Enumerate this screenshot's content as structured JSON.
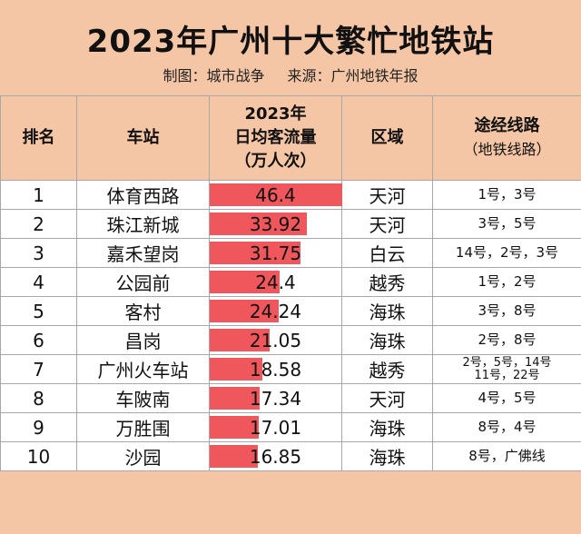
{
  "title": "2023年广州十大繁忙地铁站",
  "credits": {
    "maker": "制图：城市战争",
    "source": "来源：广州地铁年报"
  },
  "headers": {
    "rank": "排名",
    "station": "车站",
    "flow_year": "2023年",
    "flow_name": "日均客流量",
    "flow_unit": "（万人次）",
    "district": "区域",
    "lines": "途经线路",
    "lines_sub": "（地铁线路）"
  },
  "chart_data": {
    "type": "table",
    "title": "2023年广州十大繁忙地铁站",
    "value_label": "2023年日均客流量（万人次）",
    "bar_max": 46.4,
    "rows": [
      {
        "rank": "1",
        "station": "体育西路",
        "value": 46.4,
        "value_text": "46.4",
        "district": "天河",
        "lines": [
          "1号，3号"
        ]
      },
      {
        "rank": "2",
        "station": "珠江新城",
        "value": 33.92,
        "value_text": "33.92",
        "district": "天河",
        "lines": [
          "3号，5号"
        ]
      },
      {
        "rank": "3",
        "station": "嘉禾望岗",
        "value": 31.75,
        "value_text": "31.75",
        "district": "白云",
        "lines": [
          "14号，2号，3号"
        ]
      },
      {
        "rank": "4",
        "station": "公园前",
        "value": 24.4,
        "value_text": "24.4",
        "district": "越秀",
        "lines": [
          "1号，2号"
        ]
      },
      {
        "rank": "5",
        "station": "客村",
        "value": 24.24,
        "value_text": "24.24",
        "district": "海珠",
        "lines": [
          "3号，8号"
        ]
      },
      {
        "rank": "6",
        "station": "昌岗",
        "value": 21.05,
        "value_text": "21.05",
        "district": "海珠",
        "lines": [
          "2号，8号"
        ]
      },
      {
        "rank": "7",
        "station": "广州火车站",
        "value": 18.58,
        "value_text": "18.58",
        "district": "越秀",
        "lines": [
          "2号，5号，14号",
          "11号，22号"
        ]
      },
      {
        "rank": "8",
        "station": "车陂南",
        "value": 17.34,
        "value_text": "17.34",
        "district": "天河",
        "lines": [
          "4号，5号"
        ]
      },
      {
        "rank": "9",
        "station": "万胜围",
        "value": 17.01,
        "value_text": "17.01",
        "district": "海珠",
        "lines": [
          "8号，4号"
        ]
      },
      {
        "rank": "10",
        "station": "沙园",
        "value": 16.85,
        "value_text": "16.85",
        "district": "海珠",
        "lines": [
          "8号，广佛线"
        ]
      }
    ]
  },
  "colors": {
    "header_bg": "#f5c6a5",
    "bar": "#f0575c",
    "grid": "#a8a8a8"
  }
}
